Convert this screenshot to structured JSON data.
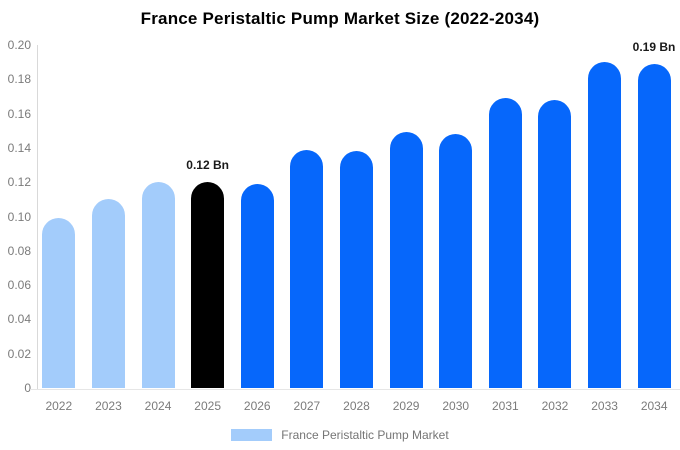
{
  "title": "France Peristaltic Pump Market Size (2022-2034)",
  "colors": {
    "bar_light_blue": "#A3CCFB",
    "bar_blue": "#0667FB",
    "bar_black": "#000000",
    "axis_text": "#7b7b7b",
    "annotation_text": "#1a1a1a",
    "axis_line": "#d9d9d9",
    "background": "#ffffff"
  },
  "legend": {
    "label": "France Peristaltic Pump Market",
    "swatch_color": "#A3CCFB"
  },
  "chart_data": {
    "type": "bar",
    "title": "France Peristaltic Pump Market Size (2022-2034)",
    "categories": [
      "2022",
      "2023",
      "2024",
      "2025",
      "2026",
      "2027",
      "2028",
      "2029",
      "2030",
      "2031",
      "2032",
      "2033",
      "2034"
    ],
    "values": [
      0.099,
      0.11,
      0.12,
      0.12,
      0.119,
      0.139,
      0.138,
      0.149,
      0.148,
      0.169,
      0.168,
      0.19,
      0.189
    ],
    "unit": "Bn",
    "bar_colors": [
      "#A3CCFB",
      "#A3CCFB",
      "#A3CCFB",
      "#000000",
      "#0667FB",
      "#0667FB",
      "#0667FB",
      "#0667FB",
      "#0667FB",
      "#0667FB",
      "#0667FB",
      "#0667FB",
      "#0667FB"
    ],
    "annotations": [
      {
        "category": "2025",
        "text": "0.12 Bn"
      },
      {
        "category": "2034",
        "text": "0.19 Bn"
      }
    ],
    "xlabel": "",
    "ylabel": "",
    "ylim": [
      0,
      0.2
    ],
    "ytick_values": [
      0,
      0.02,
      0.04,
      0.06,
      0.08,
      0.1,
      0.12,
      0.14,
      0.16,
      0.18,
      0.2
    ],
    "ytick_labels": [
      "0",
      "0.02",
      "0.04",
      "0.06",
      "0.08",
      "0.10",
      "0.12",
      "0.14",
      "0.16",
      "0.18",
      "0.20"
    ],
    "grid": false,
    "legend_position": "bottom",
    "legend_entries": [
      "France Peristaltic Pump Market"
    ]
  }
}
